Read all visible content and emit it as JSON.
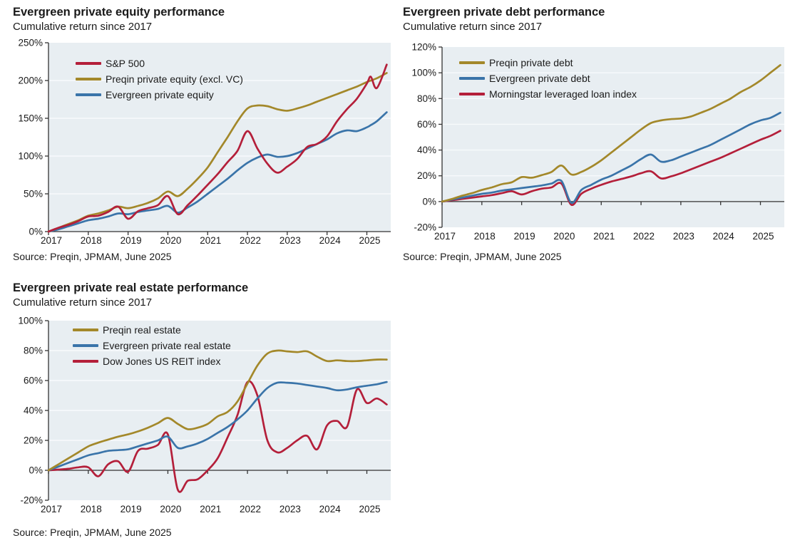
{
  "page": {
    "background": "#ffffff",
    "text_color": "#1a1a1a"
  },
  "colors": {
    "gold": "#a3882a",
    "blue": "#3a74a9",
    "crimson": "#b41f3a",
    "plot_background": "#e8eef2",
    "gridline": "#f7fafc",
    "axis": "#333333"
  },
  "chart_data": [
    {
      "type": "line",
      "title": "Evergreen private equity performance",
      "subtitle": "Cumulative return since 2017",
      "source": "Source: Preqin, JPMAM, June 2025",
      "xlabel": "",
      "ylabel": "",
      "grid": true,
      "legend_position": "top-left",
      "plot_bg": "#e8eef2",
      "ylim": [
        0,
        250
      ],
      "x_domain": [
        2017,
        2025.6
      ],
      "yticks": [
        {
          "v": 0,
          "label": "0%"
        },
        {
          "v": 50,
          "label": "50%"
        },
        {
          "v": 100,
          "label": "100%"
        },
        {
          "v": 150,
          "label": "150%"
        },
        {
          "v": 200,
          "label": "200%"
        },
        {
          "v": 250,
          "label": "250%"
        }
      ],
      "xticks": [
        {
          "v": 2017,
          "label": "2017"
        },
        {
          "v": 2018,
          "label": "2018"
        },
        {
          "v": 2019,
          "label": "2019"
        },
        {
          "v": 2020,
          "label": "2020"
        },
        {
          "v": 2021,
          "label": "2021"
        },
        {
          "v": 2022,
          "label": "2022"
        },
        {
          "v": 2023,
          "label": "2023"
        },
        {
          "v": 2024,
          "label": "2024"
        },
        {
          "v": 2025,
          "label": "2025"
        }
      ],
      "x": [
        2017,
        2017.25,
        2017.5,
        2017.75,
        2018,
        2018.25,
        2018.5,
        2018.75,
        2019,
        2019.25,
        2019.5,
        2019.75,
        2020,
        2020.25,
        2020.5,
        2020.75,
        2021,
        2021.25,
        2021.5,
        2021.75,
        2022,
        2022.25,
        2022.5,
        2022.75,
        2023,
        2023.25,
        2023.5,
        2023.75,
        2024,
        2024.25,
        2024.5,
        2024.75,
        2025,
        2025.1,
        2025.25,
        2025.5
      ],
      "series": [
        {
          "name": "S&P 500",
          "color": "#b41f3a",
          "values": [
            0,
            5,
            9,
            14,
            20,
            21,
            26,
            33,
            17,
            27,
            31,
            35,
            47,
            23,
            35,
            48,
            62,
            76,
            92,
            107,
            133,
            110,
            90,
            78,
            86,
            96,
            112,
            116,
            126,
            146,
            162,
            176,
            196,
            205,
            190,
            221
          ]
        },
        {
          "name": "Preqin private equity (excl. VC)",
          "color": "#a3882a",
          "values": [
            0,
            5,
            10,
            15,
            21,
            24,
            28,
            33,
            31,
            34,
            38,
            44,
            53,
            47,
            57,
            70,
            85,
            105,
            125,
            146,
            163,
            167,
            166,
            162,
            160,
            163,
            167,
            172,
            177,
            182,
            187,
            192,
            198,
            200,
            203,
            210
          ]
        },
        {
          "name": "Evergreen private equity",
          "color": "#3a74a9",
          "values": [
            0,
            3,
            7,
            11,
            15,
            17,
            20,
            24,
            23,
            26,
            28,
            30,
            34,
            25,
            32,
            40,
            50,
            60,
            70,
            81,
            91,
            98,
            102,
            99,
            100,
            104,
            110,
            116,
            122,
            130,
            134,
            133,
            138,
            141,
            146,
            158
          ]
        }
      ]
    },
    {
      "type": "line",
      "title": "Evergreen private debt performance",
      "subtitle": "Cumulative return since 2017",
      "source": "Source: Preqin, JPMAM, June 2025",
      "xlabel": "",
      "ylabel": "",
      "grid": true,
      "legend_position": "top-left",
      "plot_bg": "#e8eef2",
      "ylim": [
        -20,
        120
      ],
      "x_domain": [
        2017,
        2025.6
      ],
      "yticks": [
        {
          "v": -20,
          "label": "-20%"
        },
        {
          "v": 0,
          "label": "0%"
        },
        {
          "v": 20,
          "label": "20%"
        },
        {
          "v": 40,
          "label": "40%"
        },
        {
          "v": 60,
          "label": "60%"
        },
        {
          "v": 80,
          "label": "80%"
        },
        {
          "v": 100,
          "label": "100%"
        },
        {
          "v": 120,
          "label": "120%"
        }
      ],
      "xticks": [
        {
          "v": 2017,
          "label": "2017"
        },
        {
          "v": 2018,
          "label": "2018"
        },
        {
          "v": 2019,
          "label": "2019"
        },
        {
          "v": 2020,
          "label": "2020"
        },
        {
          "v": 2021,
          "label": "2021"
        },
        {
          "v": 2022,
          "label": "2022"
        },
        {
          "v": 2023,
          "label": "2023"
        },
        {
          "v": 2024,
          "label": "2024"
        },
        {
          "v": 2025,
          "label": "2025"
        }
      ],
      "x": [
        2017,
        2017.25,
        2017.5,
        2017.75,
        2018,
        2018.25,
        2018.5,
        2018.75,
        2019,
        2019.25,
        2019.5,
        2019.75,
        2020,
        2020.25,
        2020.5,
        2020.75,
        2021,
        2021.25,
        2021.5,
        2021.75,
        2022,
        2022.25,
        2022.5,
        2022.75,
        2023,
        2023.25,
        2023.5,
        2023.75,
        2024,
        2024.25,
        2024.5,
        2024.75,
        2025,
        2025.25,
        2025.5
      ],
      "series": [
        {
          "name": "Preqin private debt",
          "color": "#a3882a",
          "values": [
            0,
            2,
            4.5,
            6.5,
            9,
            11,
            13.5,
            15,
            19,
            18.5,
            20.5,
            23,
            28,
            21,
            23,
            27,
            32,
            38,
            44,
            50,
            56,
            61,
            63,
            64,
            64.5,
            66,
            69,
            72,
            76,
            80,
            85,
            89,
            94,
            100,
            106
          ]
        },
        {
          "name": "Evergreen private debt",
          "color": "#3a74a9",
          "values": [
            0,
            1.5,
            3,
            4.5,
            6,
            7,
            8.5,
            9.5,
            10.5,
            11.5,
            12.5,
            14,
            16,
            -1,
            9,
            13,
            17,
            20,
            24,
            28,
            33,
            36.5,
            31,
            32,
            35,
            38,
            41,
            44,
            48,
            52,
            56,
            60,
            63,
            65,
            69
          ]
        },
        {
          "name": "Morningstar leveraged loan index",
          "color": "#b41f3a",
          "values": [
            0,
            1,
            2,
            3,
            4,
            5,
            6.5,
            8,
            5.5,
            8,
            10,
            11,
            14,
            -2.5,
            6,
            10,
            13,
            15.5,
            17.5,
            19.5,
            22,
            23.5,
            18,
            19.5,
            22,
            25,
            28,
            31,
            34,
            37.5,
            41,
            44.5,
            48,
            51,
            55
          ]
        }
      ]
    },
    {
      "type": "line",
      "title": "Evergreen private real estate performance",
      "subtitle": "Cumulative return since 2017",
      "source": "Source: Preqin, JPMAM, June 2025",
      "xlabel": "",
      "ylabel": "",
      "grid": true,
      "legend_position": "top-left",
      "plot_bg": "#e8eef2",
      "ylim": [
        -20,
        100
      ],
      "x_domain": [
        2017,
        2025.6
      ],
      "yticks": [
        {
          "v": -20,
          "label": "-20%"
        },
        {
          "v": 0,
          "label": "0%"
        },
        {
          "v": 20,
          "label": "20%"
        },
        {
          "v": 40,
          "label": "40%"
        },
        {
          "v": 60,
          "label": "60%"
        },
        {
          "v": 80,
          "label": "80%"
        },
        {
          "v": 100,
          "label": "100%"
        }
      ],
      "xticks": [
        {
          "v": 2017,
          "label": "2017"
        },
        {
          "v": 2018,
          "label": "2018"
        },
        {
          "v": 2019,
          "label": "2019"
        },
        {
          "v": 2020,
          "label": "2020"
        },
        {
          "v": 2021,
          "label": "2021"
        },
        {
          "v": 2022,
          "label": "2022"
        },
        {
          "v": 2023,
          "label": "2023"
        },
        {
          "v": 2024,
          "label": "2024"
        },
        {
          "v": 2025,
          "label": "2025"
        }
      ],
      "x": [
        2017,
        2017.25,
        2017.5,
        2017.75,
        2018,
        2018.25,
        2018.5,
        2018.75,
        2019,
        2019.25,
        2019.5,
        2019.75,
        2020,
        2020.25,
        2020.5,
        2020.75,
        2021,
        2021.25,
        2021.5,
        2021.75,
        2022,
        2022.25,
        2022.5,
        2022.75,
        2023,
        2023.25,
        2023.5,
        2023.75,
        2024,
        2024.25,
        2024.5,
        2024.75,
        2025,
        2025.25,
        2025.5
      ],
      "series": [
        {
          "name": "Preqin real estate",
          "color": "#a3882a",
          "values": [
            0,
            4,
            8,
            12,
            16,
            18.5,
            20.5,
            22.5,
            24,
            26,
            28.5,
            31.5,
            35,
            31,
            27.5,
            28.5,
            31,
            36,
            39,
            46,
            58,
            70,
            78,
            80,
            79.5,
            79,
            79.5,
            76,
            73,
            73.5,
            73,
            73,
            73.5,
            74,
            74
          ]
        },
        {
          "name": "Evergreen private real estate",
          "color": "#3a74a9",
          "values": [
            0,
            2.5,
            5,
            7.5,
            10,
            11.5,
            13,
            13.5,
            14,
            16,
            18,
            20,
            22.5,
            15,
            16,
            18,
            21,
            25,
            29,
            34,
            40,
            48,
            55,
            58.5,
            58.5,
            58,
            57,
            56,
            55,
            53.5,
            54,
            55.5,
            56.5,
            57.5,
            59
          ]
        },
        {
          "name": "Dow Jones US REIT index",
          "color": "#b41f3a",
          "values": [
            0,
            0.5,
            1,
            2,
            2,
            -4,
            4,
            6,
            -1,
            13,
            14.5,
            17,
            24,
            -13,
            -7,
            -6,
            0,
            8,
            22,
            37,
            59,
            50,
            20,
            12,
            15,
            20,
            23,
            14,
            30,
            33,
            29,
            54,
            45,
            48,
            44
          ]
        }
      ]
    }
  ]
}
